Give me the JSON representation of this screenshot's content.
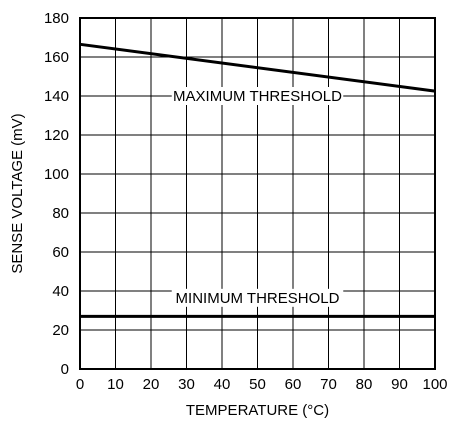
{
  "chart_data": {
    "type": "line",
    "xlabel": "TEMPERATURE (°C)",
    "ylabel": "SENSE VOLTAGE (mV)",
    "xlim": [
      0,
      100
    ],
    "ylim": [
      0,
      180
    ],
    "xticks": [
      0,
      10,
      20,
      30,
      40,
      50,
      60,
      70,
      80,
      90,
      100
    ],
    "yticks": [
      0,
      20,
      40,
      60,
      80,
      100,
      120,
      140,
      160,
      180
    ],
    "grid": true,
    "series": [
      {
        "x": [
          0,
          100
        ],
        "y": [
          166.5,
          142.5
        ],
        "annotation": "MAXIMUM THRESHOLD"
      },
      {
        "x": [
          0,
          100
        ],
        "y": [
          27,
          27
        ],
        "annotation": "MINIMUM THRESHOLD"
      }
    ],
    "annotations": [
      {
        "text": "MAXIMUM THRESHOLD",
        "x": 50,
        "y": 140
      },
      {
        "text": "MINIMUM THRESHOLD",
        "x": 50,
        "y": 36.5
      }
    ],
    "colors": {
      "line": "#000000",
      "grid": "#000000",
      "background": "#ffffff"
    }
  }
}
